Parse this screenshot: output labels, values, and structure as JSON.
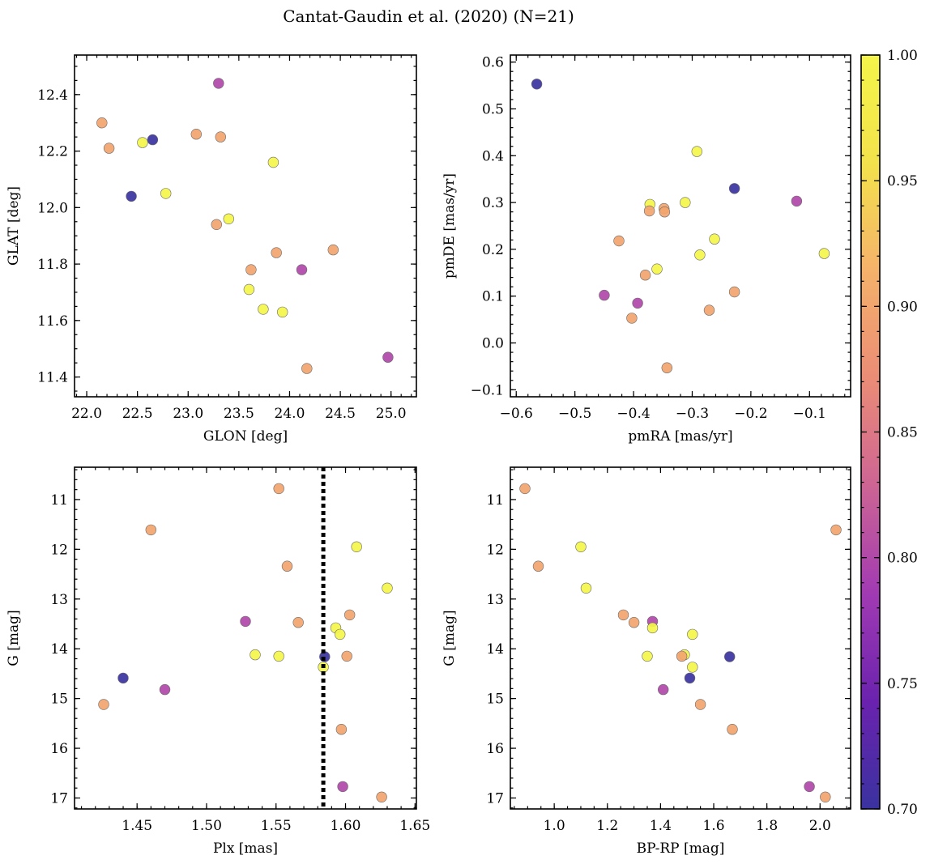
{
  "chart_data": {
    "type": "scatter",
    "title": "Cantat-Gaudin et al. (2020) (N=21)",
    "colormap": "plasma",
    "colors": {
      "stops": [
        "#3a32a0",
        "#6a22ae",
        "#a13ab3",
        "#cd6494",
        "#eb8c76",
        "#f5b26a",
        "#f3e24b",
        "#f4f54a"
      ],
      "cutoff_line": "#000000",
      "point_edge": "#6b6b6b"
    },
    "colorbar": {
      "range": [
        0.7,
        1.0
      ],
      "ticks": [
        0.7,
        0.75,
        0.8,
        0.85,
        0.9,
        0.95,
        1.0
      ],
      "tick_labels": [
        "0.70",
        "0.75",
        "0.80",
        "0.85",
        "0.90",
        "0.95",
        "1.00"
      ]
    },
    "stars": [
      {
        "glon": 22.15,
        "glat": 12.3,
        "pmra": -0.38,
        "pmde": 0.145,
        "plx": 1.426,
        "g": 15.12,
        "bprp": 1.55,
        "prob": 0.9
      },
      {
        "glon": 22.22,
        "glat": 12.21,
        "pmra": -0.425,
        "pmde": 0.218,
        "plx": 1.46,
        "g": 11.61,
        "bprp": 2.06,
        "prob": 0.9
      },
      {
        "glon": 22.44,
        "glat": 12.04,
        "pmra": -0.228,
        "pmde": 0.33,
        "plx": 1.44,
        "g": 14.59,
        "bprp": 1.51,
        "prob": 0.7
      },
      {
        "glon": 22.55,
        "glat": 12.23,
        "pmra": -0.372,
        "pmde": 0.296,
        "plx": 1.535,
        "g": 14.12,
        "bprp": 1.49,
        "prob": 1.0
      },
      {
        "glon": 22.65,
        "glat": 12.24,
        "pmra": -0.565,
        "pmde": 0.553,
        "plx": 1.585,
        "g": 14.16,
        "bprp": 1.66,
        "prob": 0.7
      },
      {
        "glon": 22.78,
        "glat": 12.05,
        "pmra": -0.075,
        "pmde": 0.191,
        "plx": 1.608,
        "g": 11.95,
        "bprp": 1.1,
        "prob": 1.0
      },
      {
        "glon": 23.08,
        "glat": 12.26,
        "pmra": -0.228,
        "pmde": 0.109,
        "plx": 1.552,
        "g": 10.78,
        "bprp": 0.89,
        "prob": 0.9
      },
      {
        "glon": 23.28,
        "glat": 11.94,
        "pmra": -0.348,
        "pmde": 0.287,
        "plx": 1.603,
        "g": 13.32,
        "bprp": 1.26,
        "prob": 0.9
      },
      {
        "glon": 23.3,
        "glat": 12.44,
        "pmra": -0.393,
        "pmde": 0.085,
        "plx": 1.528,
        "g": 13.45,
        "bprp": 1.37,
        "prob": 0.8
      },
      {
        "glon": 23.32,
        "glat": 12.25,
        "pmra": -0.347,
        "pmde": 0.28,
        "plx": 1.558,
        "g": 12.34,
        "bprp": 0.94,
        "prob": 0.9
      },
      {
        "glon": 23.4,
        "glat": 11.96,
        "pmra": -0.312,
        "pmde": 0.3,
        "plx": 1.593,
        "g": 13.58,
        "bprp": 1.37,
        "prob": 1.0
      },
      {
        "glon": 23.6,
        "glat": 11.71,
        "pmra": -0.36,
        "pmde": 0.158,
        "plx": 1.63,
        "g": 12.78,
        "bprp": 1.12,
        "prob": 1.0
      },
      {
        "glon": 23.62,
        "glat": 11.78,
        "pmra": -0.373,
        "pmde": 0.282,
        "plx": 1.566,
        "g": 13.47,
        "bprp": 1.3,
        "prob": 0.9
      },
      {
        "glon": 23.74,
        "glat": 11.64,
        "pmra": -0.262,
        "pmde": 0.222,
        "plx": 1.596,
        "g": 13.71,
        "bprp": 1.52,
        "prob": 1.0
      },
      {
        "glon": 23.84,
        "glat": 12.16,
        "pmra": -0.292,
        "pmde": 0.409,
        "plx": 1.552,
        "g": 14.15,
        "bprp": 1.35,
        "prob": 1.0
      },
      {
        "glon": 23.87,
        "glat": 11.84,
        "pmra": -0.403,
        "pmde": 0.053,
        "plx": 1.601,
        "g": 14.15,
        "bprp": 1.48,
        "prob": 0.9
      },
      {
        "glon": 23.93,
        "glat": 11.63,
        "pmra": -0.287,
        "pmde": 0.188,
        "plx": 1.584,
        "g": 14.37,
        "bprp": 1.52,
        "prob": 1.0
      },
      {
        "glon": 24.12,
        "glat": 11.78,
        "pmra": -0.122,
        "pmde": 0.303,
        "plx": 1.47,
        "g": 14.82,
        "bprp": 1.41,
        "prob": 0.8
      },
      {
        "glon": 24.17,
        "glat": 11.43,
        "pmra": -0.343,
        "pmde": -0.053,
        "plx": 1.597,
        "g": 15.62,
        "bprp": 1.67,
        "prob": 0.9
      },
      {
        "glon": 24.43,
        "glat": 11.85,
        "pmra": -0.271,
        "pmde": 0.07,
        "plx": 1.626,
        "g": 16.98,
        "bprp": 2.02,
        "prob": 0.9
      },
      {
        "glon": 24.97,
        "glat": 11.47,
        "pmra": -0.45,
        "pmde": 0.102,
        "plx": 1.598,
        "g": 16.77,
        "bprp": 1.96,
        "prob": 0.8
      }
    ],
    "panels": [
      {
        "name": "glon-glat",
        "x": "glon",
        "y": "glat",
        "xlabel": "GLON [deg]",
        "ylabel": "GLAT [deg]",
        "xlim": [
          21.88,
          25.25
        ],
        "ylim": [
          11.33,
          12.54
        ],
        "xticks": [
          22.0,
          22.5,
          23.0,
          23.5,
          24.0,
          24.5,
          25.0
        ],
        "xtick_labels": [
          "22.0",
          "22.5",
          "23.0",
          "23.5",
          "24.0",
          "24.5",
          "25.0"
        ],
        "yticks": [
          11.4,
          11.6,
          11.8,
          12.0,
          12.2,
          12.4
        ],
        "ytick_labels": [
          "11.4",
          "11.6",
          "11.8",
          "12.0",
          "12.2",
          "12.4"
        ],
        "xminor": 0.1,
        "yminor": 0.05,
        "invert_y": false
      },
      {
        "name": "pmra-pmde",
        "x": "pmra",
        "y": "pmde",
        "xlabel": "pmRA [mas/yr]",
        "ylabel": "pmDE [mas/yr]",
        "xlim": [
          -0.61,
          -0.03
        ],
        "ylim": [
          -0.115,
          0.615
        ],
        "xticks": [
          -0.6,
          -0.5,
          -0.4,
          -0.3,
          -0.2,
          -0.1
        ],
        "xtick_labels": [
          "−0.6",
          "−0.5",
          "−0.4",
          "−0.3",
          "−0.2",
          "−0.1"
        ],
        "yticks": [
          -0.1,
          0.0,
          0.1,
          0.2,
          0.3,
          0.4,
          0.5,
          0.6
        ],
        "ytick_labels": [
          "−0.1",
          "0.0",
          "0.1",
          "0.2",
          "0.3",
          "0.4",
          "0.5",
          "0.6"
        ],
        "xminor": 0.02,
        "yminor": 0.02,
        "invert_y": false
      },
      {
        "name": "plx-g",
        "x": "plx",
        "y": "g",
        "xlabel": "Plx [mas]",
        "ylabel": "G [mag]",
        "xlim": [
          1.405,
          1.651
        ],
        "ylim": [
          10.35,
          17.22
        ],
        "xticks": [
          1.45,
          1.5,
          1.55,
          1.6,
          1.65
        ],
        "xtick_labels": [
          "1.45",
          "1.50",
          "1.55",
          "1.60",
          "1.65"
        ],
        "yticks": [
          11,
          12,
          13,
          14,
          15,
          16,
          17
        ],
        "ytick_labels": [
          "11",
          "12",
          "13",
          "14",
          "15",
          "16",
          "17"
        ],
        "xminor": 0.01,
        "yminor": 0.2,
        "invert_y": true,
        "vline": 1.584
      },
      {
        "name": "bprp-g",
        "x": "bprp",
        "y": "g",
        "xlabel": "BP-RP [mag]",
        "ylabel": "G [mag]",
        "xlim": [
          0.835,
          2.115
        ],
        "ylim": [
          10.35,
          17.22
        ],
        "xticks": [
          1.0,
          1.2,
          1.4,
          1.6,
          1.8,
          2.0
        ],
        "xtick_labels": [
          "1.0",
          "1.2",
          "1.4",
          "1.6",
          "1.8",
          "2.0"
        ],
        "yticks": [
          11,
          12,
          13,
          14,
          15,
          16,
          17
        ],
        "ytick_labels": [
          "11",
          "12",
          "13",
          "14",
          "15",
          "16",
          "17"
        ],
        "xminor": 0.05,
        "yminor": 0.2,
        "invert_y": true
      }
    ]
  }
}
